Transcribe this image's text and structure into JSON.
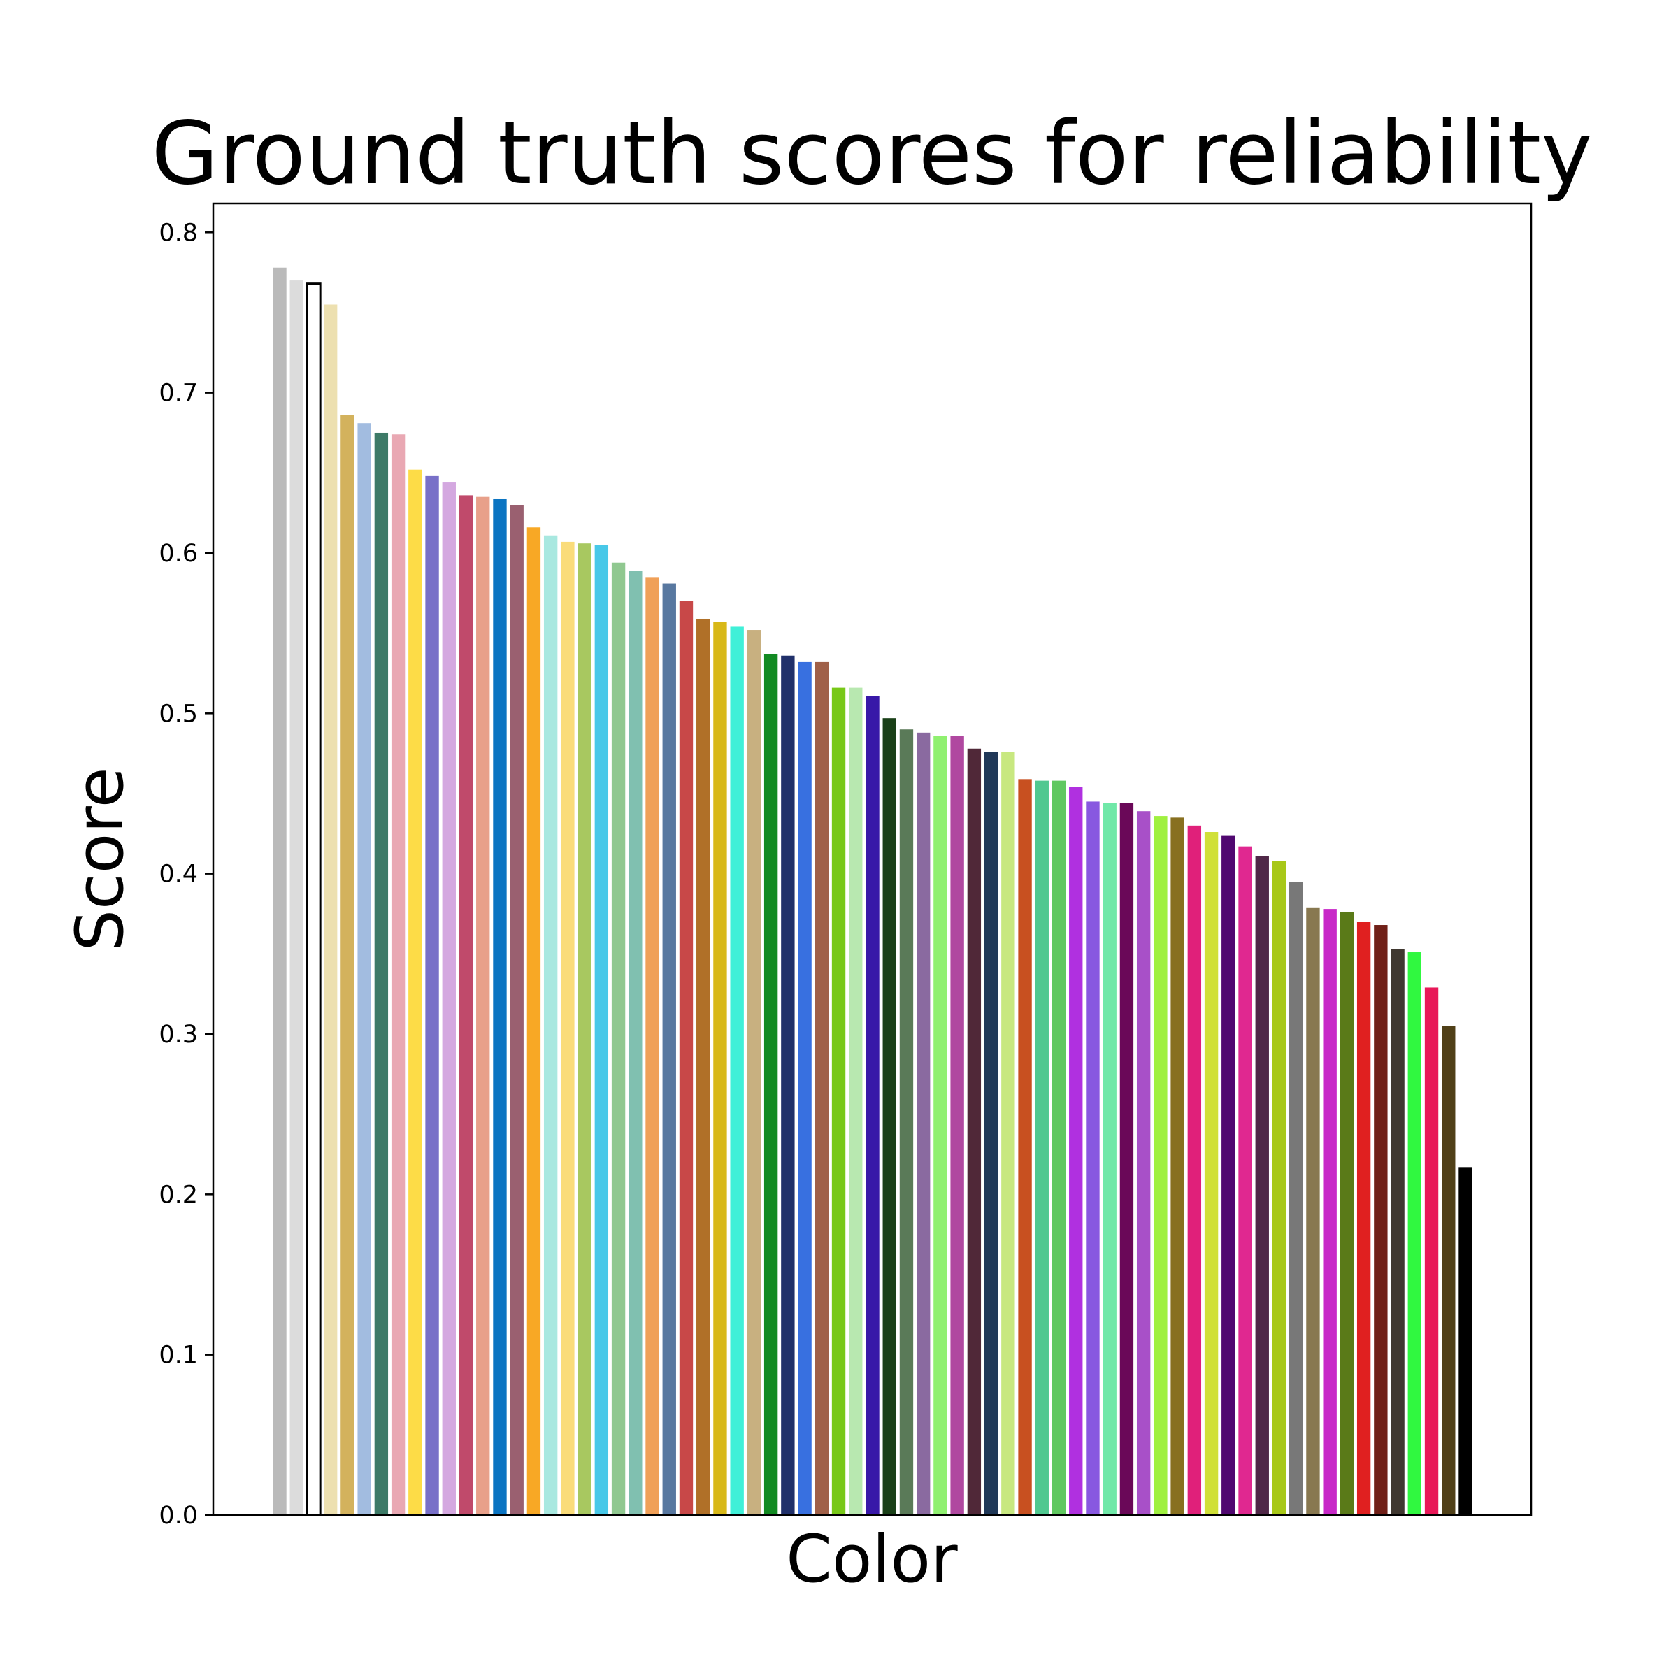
{
  "chart_data": {
    "type": "bar",
    "title": "Ground truth scores for reliability",
    "xlabel": "Color",
    "ylabel": "Score",
    "ylim": [
      0,
      0.818
    ],
    "yticks": [
      "0.0",
      "0.1",
      "0.2",
      "0.3",
      "0.4",
      "0.5",
      "0.6",
      "0.7",
      "0.8"
    ],
    "grid": false,
    "legend": "none",
    "values": [
      0.778,
      0.77,
      0.768,
      0.755,
      0.686,
      0.681,
      0.675,
      0.674,
      0.652,
      0.648,
      0.644,
      0.636,
      0.635,
      0.634,
      0.63,
      0.616,
      0.611,
      0.607,
      0.606,
      0.605,
      0.594,
      0.589,
      0.585,
      0.581,
      0.57,
      0.559,
      0.557,
      0.554,
      0.552,
      0.537,
      0.536,
      0.532,
      0.532,
      0.516,
      0.516,
      0.511,
      0.497,
      0.49,
      0.488,
      0.486,
      0.486,
      0.478,
      0.476,
      0.476,
      0.459,
      0.458,
      0.458,
      0.454,
      0.445,
      0.444,
      0.444,
      0.439,
      0.436,
      0.435,
      0.43,
      0.426,
      0.424,
      0.417,
      0.411,
      0.408,
      0.395,
      0.379,
      0.378,
      0.376,
      0.37,
      0.368,
      0.353,
      0.351,
      0.329,
      0.305,
      0.217
    ],
    "colors": [
      "#bababa",
      "#dcdcdc",
      "#ffffff",
      "#ede0b0",
      "#d3b25d",
      "#a2bce0",
      "#3d7a67",
      "#e9a8b3",
      "#fddc47",
      "#7870c8",
      "#d4a8e0",
      "#c04a6b",
      "#e8a08a",
      "#0a74c2",
      "#9a6070",
      "#f8a825",
      "#a8e8e0",
      "#fadc7a",
      "#a8c860",
      "#48c8e8",
      "#90c890",
      "#80c0b0",
      "#f0a058",
      "#5878a0",
      "#c84848",
      "#b07028",
      "#d8b818",
      "#40f0d8",
      "#c8b080",
      "#128a22",
      "#20306a",
      "#3870e0",
      "#a06048",
      "#78c818",
      "#b8e8b0",
      "#3818a8",
      "#1a4018",
      "#5a7a58",
      "#8a6aa0",
      "#90f070",
      "#b048a0",
      "#502838",
      "#203858",
      "#c8e880",
      "#c85020",
      "#50c890",
      "#60c860",
      "#b030e0",
      "#8858e0",
      "#70e8a8",
      "#6a0858",
      "#a850c8",
      "#a0f040",
      "#887020",
      "#e0207a",
      "#d0e038",
      "#500870",
      "#e02890",
      "#502848",
      "#a8c818",
      "#787878",
      "#887850",
      "#c828c8",
      "#5a7a18",
      "#e02020",
      "#702018",
      "#403830",
      "#30f840",
      "#e81858",
      "#504018",
      "#000000"
    ],
    "edgecolors": [
      "",
      "",
      "#000000",
      "",
      "",
      "",
      "",
      "",
      "",
      "",
      "",
      "",
      "",
      "",
      "",
      "",
      "",
      "",
      "",
      "",
      "",
      "",
      "",
      "",
      "",
      "",
      "",
      "",
      "",
      "",
      "",
      "",
      "",
      "",
      "",
      "",
      "",
      "",
      "",
      "",
      "",
      "",
      "",
      "",
      "",
      "",
      "",
      "",
      "",
      "",
      "",
      "",
      "",
      "",
      "",
      "",
      "",
      "",
      "",
      "",
      "",
      "",
      "",
      "",
      "",
      "",
      "",
      "",
      "",
      "",
      ""
    ]
  }
}
